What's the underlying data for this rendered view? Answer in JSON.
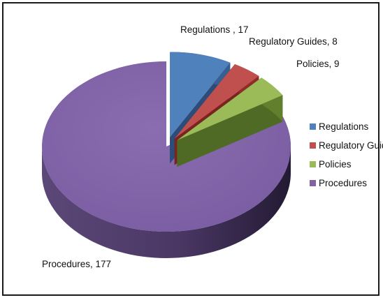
{
  "chart_data": {
    "type": "pie",
    "style": "3d-exploded",
    "categories": [
      "Regulations",
      "Regulatory Guides",
      "Policies",
      "Procedures"
    ],
    "values": [
      17,
      8,
      9,
      177
    ],
    "data_labels": [
      "Regulations , 17",
      "Regulatory Guides, 8",
      "Policies, 9",
      "Procedures, 177"
    ],
    "colors": [
      "#4f81bd",
      "#c0504d",
      "#9bbb59",
      "#8064a2"
    ],
    "legend": {
      "placement": "right",
      "entries": [
        "Regulations",
        "Regulatory Guides",
        "Policies",
        "Procedures"
      ]
    }
  }
}
